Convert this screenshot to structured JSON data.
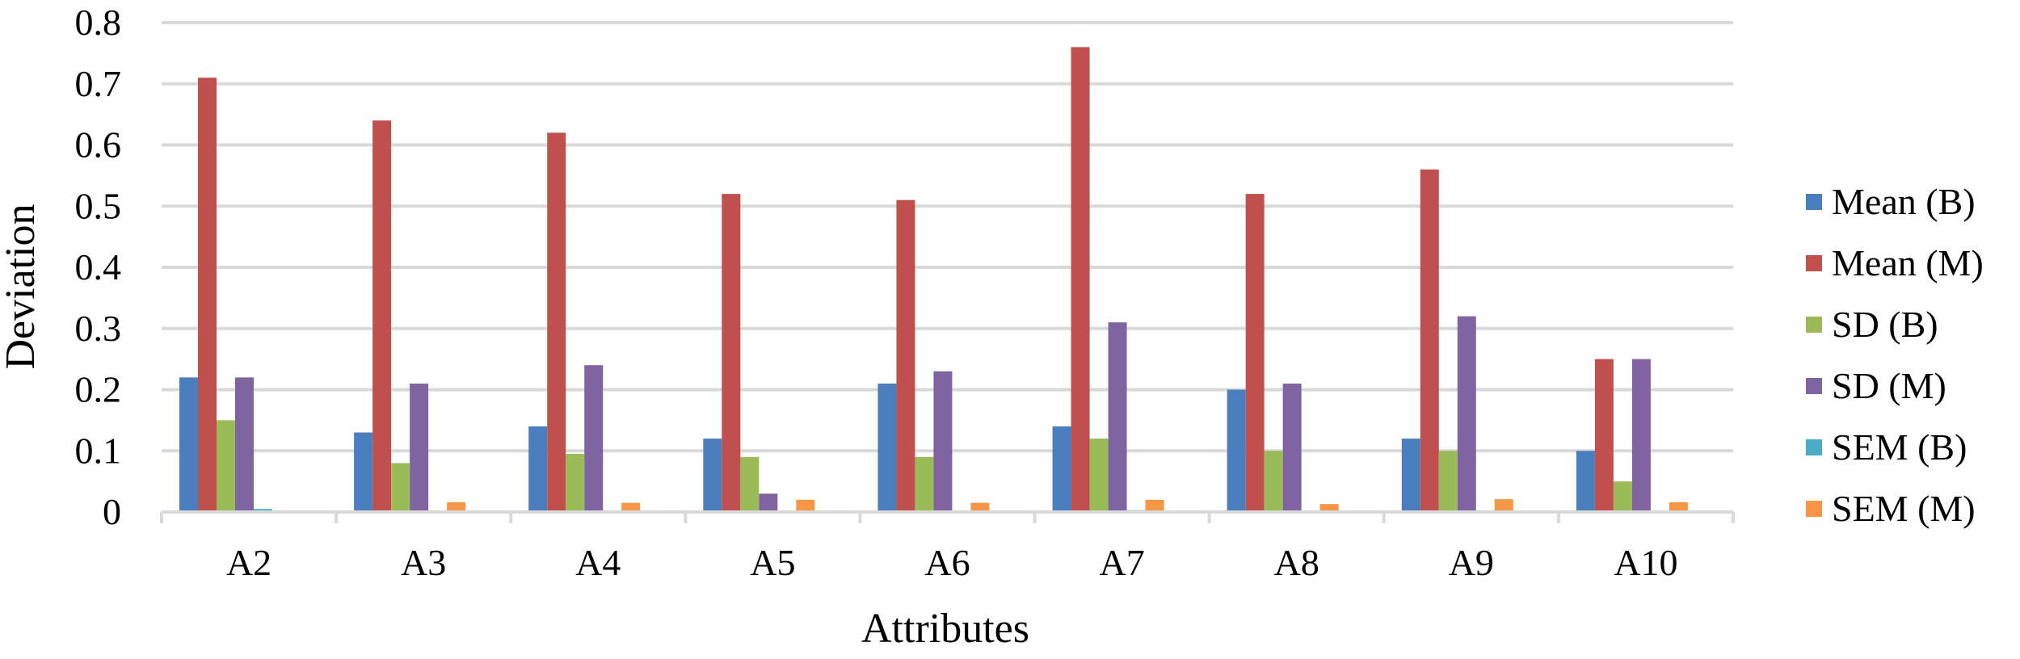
{
  "chart_data": {
    "type": "bar",
    "title": "",
    "xlabel": "Attributes",
    "ylabel": "Deviation",
    "ylim": [
      0,
      0.8
    ],
    "yticks": [
      0,
      0.1,
      0.2,
      0.3,
      0.4,
      0.5,
      0.6,
      0.7,
      0.8
    ],
    "ytick_labels": [
      "0",
      "0.1",
      "0.2",
      "0.3",
      "0.4",
      "0.5",
      "0.6",
      "0.7",
      "0.8"
    ],
    "grid": true,
    "legend_position": "right",
    "categories": [
      "A2",
      "A3",
      "A4",
      "A5",
      "A6",
      "A7",
      "A8",
      "A9",
      "A10"
    ],
    "series": [
      {
        "name": "Mean (B)",
        "color": "#4a7ebf",
        "values": [
          0.22,
          0.13,
          0.14,
          0.12,
          0.21,
          0.14,
          0.2,
          0.12,
          0.1
        ]
      },
      {
        "name": "Mean (M)",
        "color": "#c0504d",
        "values": [
          0.71,
          0.64,
          0.62,
          0.52,
          0.51,
          0.76,
          0.52,
          0.56,
          0.25
        ]
      },
      {
        "name": "SD (B)",
        "color": "#9bbb59",
        "values": [
          0.15,
          0.08,
          0.095,
          0.09,
          0.09,
          0.12,
          0.1,
          0.1,
          0.05
        ]
      },
      {
        "name": "SD (M)",
        "color": "#8064a2",
        "values": [
          0.22,
          0.21,
          0.24,
          0.03,
          0.23,
          0.31,
          0.21,
          0.32,
          0.25
        ]
      },
      {
        "name": "SEM (B)",
        "color": "#4bacc6",
        "values": [
          0.005,
          0.002,
          0.002,
          0.002,
          0.002,
          0.003,
          0.002,
          0.002,
          0.002
        ]
      },
      {
        "name": "SEM (M)",
        "color": "#f79646",
        "values": [
          0.002,
          0.016,
          0.015,
          0.02,
          0.015,
          0.02,
          0.013,
          0.021,
          0.016
        ]
      }
    ]
  }
}
